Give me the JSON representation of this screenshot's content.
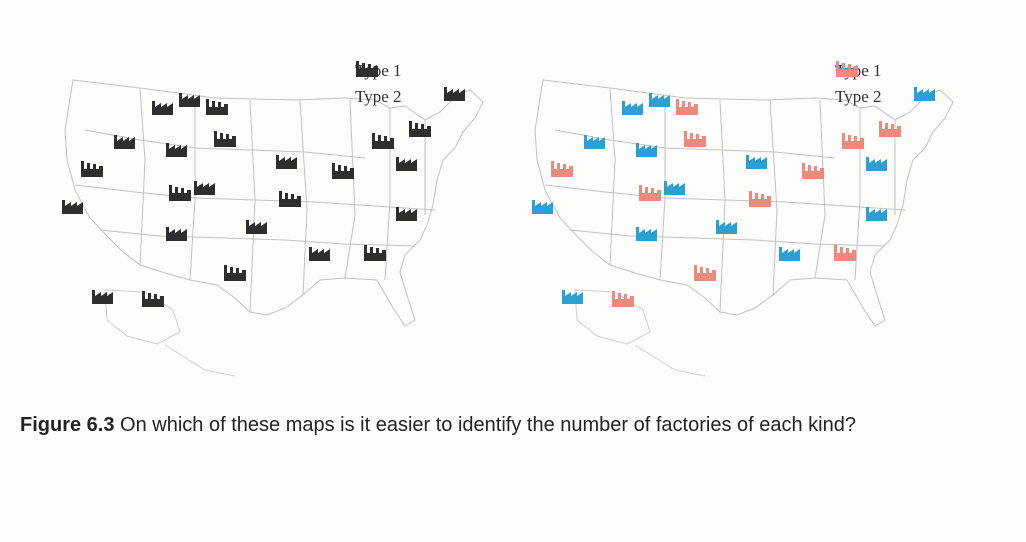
{
  "legend": {
    "type1": "Type 1",
    "type2": "Type 2"
  },
  "colors": {
    "monochrome": "#2e2e2e",
    "type1_color": "#2c9fd3",
    "type2_color": "#ec8a7d",
    "border": "#bdbdbd"
  },
  "icons": {
    "type1": "factory-sawtooth-icon",
    "type2": "factory-chimneys-icon"
  },
  "factories": {
    "type1_count": 14,
    "type2_count": 11
  },
  "caption": {
    "figure_label": "Figure 6.3",
    "text": "On which of these maps is it easier to identify the number of factories of each kind?"
  }
}
